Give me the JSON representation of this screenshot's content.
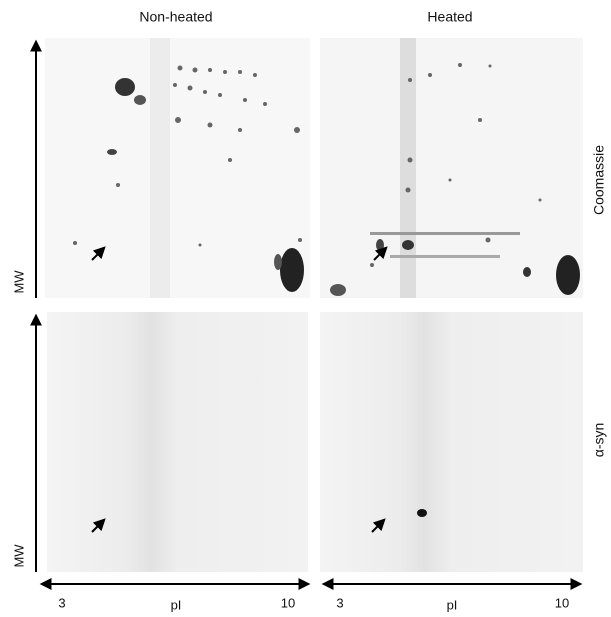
{
  "columns": [
    "Non-heated",
    "Heated"
  ],
  "rows": [
    "Coomassie",
    "α-syn"
  ],
  "y_axis_labels": [
    "MW",
    "MW"
  ],
  "x_axes": [
    {
      "label": "pI",
      "min": "3",
      "max": "10"
    },
    {
      "label": "pI",
      "min": "3",
      "max": "10"
    }
  ]
}
